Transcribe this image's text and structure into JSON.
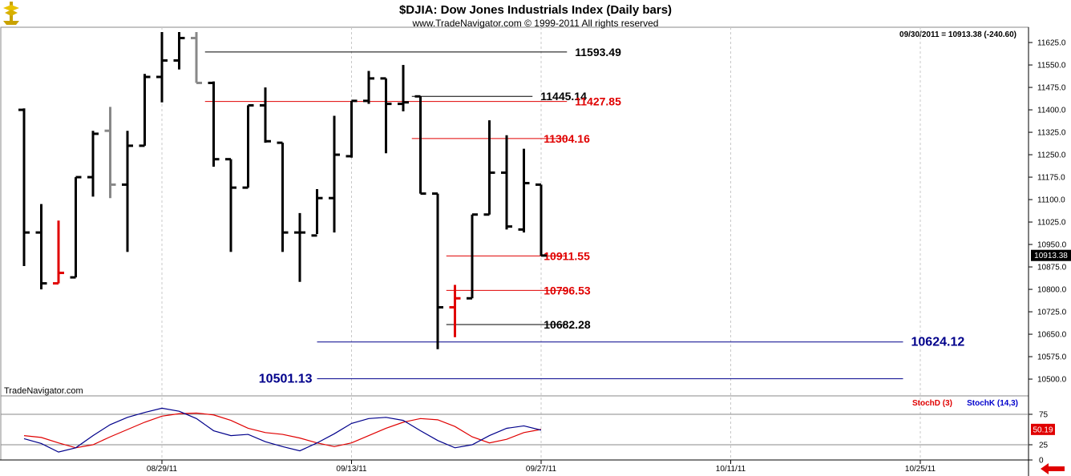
{
  "header": {
    "title": "$DJIA:  Dow Jones Industrials Index  (Daily bars)",
    "subtitle": "www.TradeNavigator.com © 1999-2011 All rights reserved",
    "last_bar_info": "09/30/2011 = 10913.38 (-240.60)",
    "watermark": "TradeNavigator.com"
  },
  "colors": {
    "up_bar": "#000000",
    "gray_bar": "#888888",
    "red_bar": "#e00000",
    "resistance_black": "#000000",
    "resistance_red": "#e00000",
    "support_blue": "#00008b",
    "stoch_d": "#e00000",
    "stoch_k": "#0000cc",
    "grid": "#c8c8c8"
  },
  "icons": {
    "logo": "trade-navigator-logo-icon",
    "scroll": "red-left-arrow-icon"
  },
  "chart_data": [
    {
      "type": "ohlc",
      "title": "$DJIA:  Dow Jones Industrials Index  (Daily bars)",
      "ylim": [
        10460,
        11660
      ],
      "y_ticks": [
        10500,
        10575,
        10650,
        10725,
        10800,
        10875,
        10950,
        11025,
        11100,
        11175,
        11250,
        11325,
        11400,
        11475,
        11550,
        11625
      ],
      "y_tick_labels": [
        "10500.0",
        "10575.0",
        "10650.0",
        "10725.0",
        "10800.0",
        "10875.0",
        "10950.0",
        "11025.0",
        "11100.0",
        "11175.0",
        "11250.0",
        "11325.0",
        "11400.0",
        "11475.0",
        "11550.0",
        "11625.0"
      ],
      "x_tick_labels": [
        "08/29/11",
        "09/13/11",
        "09/27/11",
        "10/11/11",
        "10/25/11"
      ],
      "x_tick_bar_index": [
        8,
        19,
        30,
        41,
        52
      ],
      "last_price_label": "10913.38",
      "last_price": 10913.38,
      "bars": [
        {
          "o": 11400,
          "h": 11405,
          "l": 10878,
          "c": 10990,
          "color": "black"
        },
        {
          "o": 10990,
          "h": 11085,
          "l": 10800,
          "c": 10820,
          "color": "black"
        },
        {
          "o": 10820,
          "h": 11030,
          "l": 10820,
          "c": 10855,
          "color": "red"
        },
        {
          "o": 10840,
          "h": 11175,
          "l": 10840,
          "c": 11175,
          "color": "black"
        },
        {
          "o": 11175,
          "h": 11330,
          "l": 11110,
          "c": 11320,
          "color": "black"
        },
        {
          "o": 11330,
          "h": 11410,
          "l": 11105,
          "c": 11150,
          "color": "gray"
        },
        {
          "o": 11150,
          "h": 11330,
          "l": 10925,
          "c": 11280,
          "color": "black"
        },
        {
          "o": 11280,
          "h": 11520,
          "l": 11280,
          "c": 11510,
          "color": "black"
        },
        {
          "o": 11510,
          "h": 11660,
          "l": 11425,
          "c": 11565,
          "color": "black"
        },
        {
          "o": 11565,
          "h": 11660,
          "l": 11535,
          "c": 11640,
          "color": "black"
        },
        {
          "o": 11640,
          "h": 11660,
          "l": 11490,
          "c": 11490,
          "color": "gray"
        },
        {
          "o": 11490,
          "h": 11495,
          "l": 11210,
          "c": 11235,
          "color": "black"
        },
        {
          "o": 11235,
          "h": 11235,
          "l": 10925,
          "c": 11140,
          "color": "black"
        },
        {
          "o": 11140,
          "h": 11415,
          "l": 11140,
          "c": 11415,
          "color": "black"
        },
        {
          "o": 11415,
          "h": 11475,
          "l": 11290,
          "c": 11295,
          "color": "black"
        },
        {
          "o": 11290,
          "h": 11290,
          "l": 10925,
          "c": 10990,
          "color": "black"
        },
        {
          "o": 10990,
          "h": 11055,
          "l": 10825,
          "c": 10990,
          "color": "black"
        },
        {
          "o": 10980,
          "h": 11135,
          "l": 10985,
          "c": 11105,
          "color": "black"
        },
        {
          "o": 11105,
          "h": 11380,
          "l": 10990,
          "c": 11250,
          "color": "black"
        },
        {
          "o": 11245,
          "h": 11430,
          "l": 11240,
          "c": 11430,
          "color": "black"
        },
        {
          "o": 11430,
          "h": 11530,
          "l": 11420,
          "c": 11505,
          "color": "black"
        },
        {
          "o": 11505,
          "h": 11505,
          "l": 11255,
          "c": 11420,
          "color": "black"
        },
        {
          "o": 11420,
          "h": 11550,
          "l": 11395,
          "c": 11425,
          "color": "black"
        },
        {
          "o": 11445,
          "h": 11445,
          "l": 11120,
          "c": 11120,
          "color": "black"
        },
        {
          "o": 11120,
          "h": 11120,
          "l": 10600,
          "c": 10740,
          "color": "black"
        },
        {
          "o": 10740,
          "h": 10815,
          "l": 10640,
          "c": 10770,
          "color": "red"
        },
        {
          "o": 10770,
          "h": 11050,
          "l": 10770,
          "c": 11050,
          "color": "black"
        },
        {
          "o": 11050,
          "h": 11365,
          "l": 11050,
          "c": 11190,
          "color": "black"
        },
        {
          "o": 11190,
          "h": 11315,
          "l": 11000,
          "c": 11010,
          "color": "black"
        },
        {
          "o": 11000,
          "h": 11270,
          "l": 10990,
          "c": 11155,
          "color": "black"
        },
        {
          "o": 11150,
          "h": 11150,
          "l": 10912,
          "c": 10913,
          "color": "black"
        }
      ],
      "levels": [
        {
          "value": 11593.49,
          "label": "11593.49",
          "color": "black",
          "from_bar": 10.5,
          "to_bar": 31.5,
          "label_side": "right"
        },
        {
          "value": 11445.14,
          "label": "11445.14",
          "color": "black",
          "from_bar": 22.5,
          "to_bar": 29.5,
          "label_side": "right"
        },
        {
          "value": 11427.85,
          "label": "11427.85",
          "color": "red",
          "from_bar": 10.5,
          "to_bar": 31.5,
          "label_side": "right"
        },
        {
          "value": 11304.16,
          "label": "11304.16",
          "color": "red",
          "from_bar": 22.5,
          "to_bar": 31.5,
          "label_side": "right-near"
        },
        {
          "value": 10911.55,
          "label": "10911.55",
          "color": "red",
          "from_bar": 24.5,
          "to_bar": 31.5,
          "label_side": "right-near"
        },
        {
          "value": 10796.53,
          "label": "10796.53",
          "color": "red",
          "from_bar": 24.5,
          "to_bar": 31.5,
          "label_side": "right-near"
        },
        {
          "value": 10682.28,
          "label": "10682.28",
          "color": "black",
          "from_bar": 24.5,
          "to_bar": 31.5,
          "label_side": "right-near"
        },
        {
          "value": 10624.12,
          "label": "10624.12",
          "color": "blue",
          "from_bar": 17,
          "to_bar": 51,
          "label_side": "far-right"
        },
        {
          "value": 10501.13,
          "label": "10501.13",
          "color": "blue",
          "from_bar": 17,
          "to_bar": 51,
          "label_side": "left"
        }
      ]
    },
    {
      "type": "line",
      "legend": [
        {
          "name": "StochD (3)",
          "color": "red"
        },
        {
          "name": "StochK (14,3)",
          "color": "blue"
        }
      ],
      "ylim": [
        0,
        100
      ],
      "y_ticks": [
        0,
        25,
        75
      ],
      "y_tick_labels": [
        "0",
        "25",
        "75"
      ],
      "last_value_label": "50.19",
      "last_value": 50.19,
      "series": [
        {
          "name": "StochD (3)",
          "color": "red",
          "values": [
            40,
            37,
            28,
            20,
            25,
            38,
            50,
            62,
            72,
            76,
            77,
            74,
            65,
            52,
            45,
            42,
            36,
            28,
            22,
            28,
            40,
            52,
            62,
            68,
            66,
            55,
            38,
            28,
            34,
            45,
            50.19
          ]
        },
        {
          "name": "StochK (14,3)",
          "color": "blue",
          "values": [
            35,
            27,
            13,
            20,
            40,
            58,
            70,
            78,
            85,
            80,
            68,
            48,
            40,
            42,
            30,
            22,
            15,
            28,
            43,
            60,
            68,
            70,
            65,
            48,
            32,
            20,
            25,
            40,
            52,
            56,
            49
          ]
        }
      ]
    }
  ]
}
